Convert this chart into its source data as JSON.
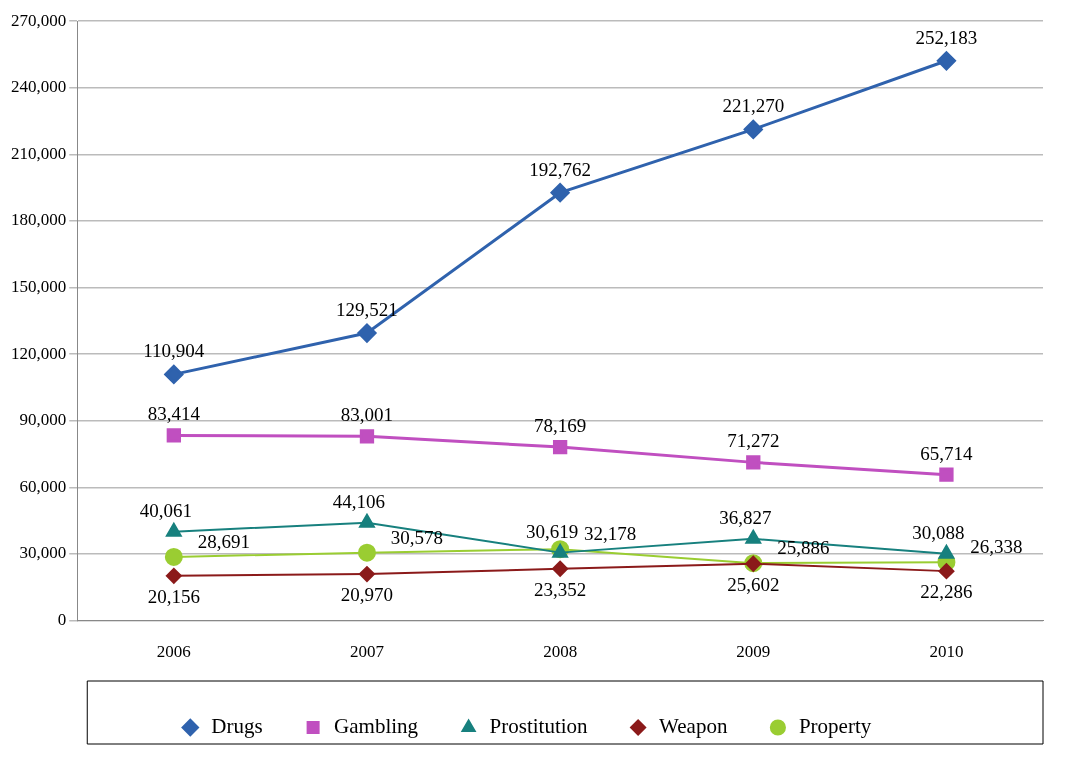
{
  "chart_data": {
    "type": "line",
    "categories": [
      "2006",
      "2007",
      "2008",
      "2009",
      "2010"
    ],
    "series": [
      {
        "name": "Drugs",
        "color": "#2f62ad",
        "values": [
          110904,
          129521,
          192762,
          221270,
          252183
        ],
        "value_labels": [
          "110,904",
          "129,521",
          "192,762",
          "221,270",
          "252,183"
        ],
        "marker": "diamond"
      },
      {
        "name": "Gambling",
        "color": "#c04fc0",
        "values": [
          83414,
          83001,
          78169,
          71272,
          65714
        ],
        "value_labels": [
          "83,414",
          "83,001",
          "78,169",
          "71,272",
          "65,714"
        ],
        "marker": "square"
      },
      {
        "name": "Prostitution",
        "color": "#17807e",
        "values": [
          40061,
          44106,
          30619,
          36827,
          30088
        ],
        "value_labels": [
          "40,061",
          "44,106",
          "30,619",
          "36,827",
          "30,088"
        ],
        "marker": "triangle"
      },
      {
        "name": "Weapon",
        "color": "#8b1a1a",
        "values": [
          20156,
          20970,
          23352,
          25602,
          22286
        ],
        "value_labels": [
          "20,156",
          "20,970",
          "23,352",
          "25,602",
          "22,286"
        ],
        "marker": "diamond"
      },
      {
        "name": "Property",
        "color": "#9acd32",
        "values": [
          28691,
          30578,
          32178,
          25886,
          26338
        ],
        "value_labels": [
          "28,691",
          "30,578",
          "32,178",
          "25,886",
          "26,338"
        ],
        "marker": "circle"
      }
    ],
    "ylim": [
      0,
      270000
    ],
    "yticks": [
      {
        "value": 0,
        "label": "0"
      },
      {
        "value": 30000,
        "label": "30,000"
      },
      {
        "value": 60000,
        "label": "60,000"
      },
      {
        "value": 90000,
        "label": "90,000"
      },
      {
        "value": 120000,
        "label": "120,000"
      },
      {
        "value": 150000,
        "label": "150,000"
      },
      {
        "value": 180000,
        "label": "180,000"
      },
      {
        "value": 210000,
        "label": "210,000"
      },
      {
        "value": 240000,
        "label": "240,000"
      },
      {
        "value": 270000,
        "label": "270,000"
      }
    ],
    "grid": "y",
    "legend": "bottom"
  }
}
